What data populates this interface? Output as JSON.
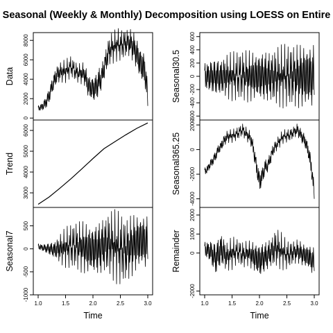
{
  "chart_data": {
    "type": "line",
    "title": "Seasonal (Weekly & Monthly) Decomposition using LOESS on Entire",
    "xlabel": "Time",
    "xlim": [
      1.0,
      3.0
    ],
    "x_ticks": [
      "1.0",
      "1.5",
      "2.0",
      "2.5",
      "3.0"
    ],
    "x_tick_values": [
      1.0,
      1.5,
      2.0,
      2.5,
      3.0
    ],
    "panels": [
      {
        "ylabel": "Data",
        "ylim": [
          -200,
          8800
        ],
        "y_ticks": [
          "0",
          "2000",
          "4000",
          "6000",
          "8000"
        ],
        "y_tick_values": [
          0,
          2000,
          4000,
          6000,
          8000
        ],
        "series": {
          "x": [
            1.0,
            1.05,
            1.1,
            1.15,
            1.2,
            1.25,
            1.3,
            1.35,
            1.4,
            1.45,
            1.5,
            1.55,
            1.6,
            1.65,
            1.7,
            1.75,
            1.8,
            1.85,
            1.9,
            1.95,
            2.0,
            2.05,
            2.1,
            2.15,
            2.2,
            2.25,
            2.3,
            2.35,
            2.4,
            2.45,
            2.5,
            2.55,
            2.6,
            2.65,
            2.7,
            2.75,
            2.8,
            2.85,
            2.9,
            2.95,
            3.0
          ],
          "y": [
            1000,
            1100,
            1300,
            1700,
            2300,
            3200,
            4000,
            4500,
            4700,
            4800,
            4800,
            5100,
            5300,
            5000,
            4700,
            4600,
            4600,
            4500,
            3500,
            3100,
            3000,
            3100,
            3700,
            4100,
            5100,
            6200,
            7000,
            7200,
            7400,
            7600,
            7500,
            7600,
            7700,
            7800,
            7600,
            7200,
            6600,
            5800,
            5300,
            4900,
            2000
          ],
          "amplitude": [
            350,
            450,
            600,
            800,
            900,
            1000,
            1100,
            1150,
            1100,
            1200,
            1200,
            1250,
            1200,
            1150,
            1100,
            1100,
            1200,
            1300,
            1400,
            1500,
            1600,
            1700,
            1700,
            1500,
            1500,
            1600,
            1700,
            1700,
            1700,
            1700,
            1700,
            1700,
            1600,
            1600,
            1700,
            1800,
            1900,
            2000,
            2100,
            2200,
            1500
          ]
        }
      },
      {
        "ylabel": "Trend",
        "ylim": [
          2300,
          6500
        ],
        "y_ticks": [
          "3000",
          "4000",
          "5000",
          "6000"
        ],
        "y_tick_values": [
          3000,
          4000,
          5000,
          6000
        ],
        "series": {
          "x": [
            1.0,
            1.2,
            1.4,
            1.6,
            1.8,
            2.0,
            2.2,
            2.4,
            2.6,
            2.8,
            3.0
          ],
          "y": [
            2450,
            2800,
            3230,
            3680,
            4160,
            4650,
            5120,
            5460,
            5790,
            6100,
            6360
          ]
        }
      },
      {
        "ylabel": "Seasonal7",
        "ylim": [
          -1000,
          900
        ],
        "y_ticks": [
          "-1000",
          "-500",
          "0",
          "500"
        ],
        "y_tick_values": [
          -1000,
          -500,
          0,
          500
        ],
        "series": {
          "x": [
            1.0,
            1.1,
            1.2,
            1.3,
            1.4,
            1.5,
            1.6,
            1.7,
            1.8,
            1.9,
            2.0,
            2.1,
            2.2,
            2.3,
            2.4,
            2.5,
            2.6,
            2.7,
            2.8,
            2.9,
            3.0
          ],
          "y": [
            50,
            20,
            0,
            -20,
            0,
            30,
            60,
            70,
            40,
            0,
            -20,
            0,
            80,
            120,
            60,
            0,
            -40,
            60,
            140,
            180,
            120
          ],
          "amplitude": [
            80,
            100,
            150,
            230,
            350,
            450,
            520,
            560,
            600,
            630,
            620,
            660,
            720,
            760,
            800,
            830,
            780,
            760,
            700,
            680,
            680
          ]
        }
      },
      {
        "ylabel": "Seasonal30.5",
        "ylim": [
          -660,
          660
        ],
        "y_ticks": [
          "-600",
          "-400",
          "-200",
          "0",
          "200",
          "400",
          "600"
        ],
        "y_tick_values": [
          -600,
          -400,
          -200,
          0,
          200,
          400,
          600
        ],
        "series": {
          "x": [
            1.0,
            1.1,
            1.2,
            1.3,
            1.4,
            1.5,
            1.6,
            1.7,
            1.8,
            1.9,
            2.0,
            2.1,
            2.2,
            2.3,
            2.4,
            2.5,
            2.6,
            2.7,
            2.8,
            2.9,
            3.0
          ],
          "y": [
            0,
            0,
            -10,
            -10,
            0,
            0,
            10,
            10,
            0,
            0,
            0,
            0,
            -10,
            0,
            0,
            10,
            10,
            0,
            0,
            0,
            0
          ],
          "amplitude": [
            260,
            300,
            320,
            340,
            360,
            380,
            400,
            410,
            420,
            420,
            430,
            440,
            450,
            470,
            480,
            500,
            520,
            540,
            550,
            560,
            560
          ]
        }
      },
      {
        "ylabel": "Seasonal365.25",
        "ylim": [
          -4700,
          2400
        ],
        "y_ticks": [
          "-4000",
          "-2000",
          "0",
          "2000"
        ],
        "y_tick_values": [
          -4000,
          -2000,
          0,
          2000
        ],
        "series": {
          "x": [
            1.0,
            1.05,
            1.1,
            1.15,
            1.2,
            1.25,
            1.3,
            1.35,
            1.4,
            1.45,
            1.5,
            1.55,
            1.6,
            1.65,
            1.7,
            1.75,
            1.8,
            1.85,
            1.9,
            1.95,
            2.0,
            2.05,
            2.1,
            2.15,
            2.2,
            2.25,
            2.3,
            2.35,
            2.4,
            2.45,
            2.5,
            2.55,
            2.6,
            2.65,
            2.7,
            2.75,
            2.8,
            2.85,
            2.9,
            2.95,
            3.0
          ],
          "y": [
            -1800,
            -1600,
            -1200,
            -900,
            -500,
            0,
            300,
            700,
            1000,
            1100,
            1100,
            1200,
            1300,
            1500,
            1600,
            1300,
            1100,
            800,
            -200,
            -1500,
            -2600,
            -2200,
            -1400,
            -1300,
            -700,
            0,
            300,
            600,
            900,
            1100,
            1100,
            1200,
            1300,
            1500,
            1600,
            1200,
            900,
            500,
            -300,
            -1500,
            -3600
          ],
          "amplitude": [
            400,
            400,
            450,
            450,
            500,
            500,
            500,
            550,
            550,
            550,
            550,
            550,
            550,
            550,
            600,
            600,
            600,
            650,
            750,
            900,
            1100,
            900,
            700,
            650,
            650,
            600,
            550,
            550,
            550,
            550,
            550,
            550,
            550,
            550,
            600,
            600,
            650,
            700,
            800,
            1000,
            800
          ]
        }
      },
      {
        "ylabel": "Remainder",
        "ylim": [
          -2200,
          2400
        ],
        "y_ticks": [
          "-2000",
          "0",
          "1000",
          "2000"
        ],
        "y_tick_values": [
          -2000,
          0,
          1000,
          2000
        ],
        "series": {
          "x": [
            1.0,
            1.1,
            1.2,
            1.3,
            1.4,
            1.5,
            1.6,
            1.7,
            1.8,
            1.9,
            2.0,
            2.1,
            2.2,
            2.3,
            2.4,
            2.5,
            2.6,
            2.7,
            2.8,
            2.9,
            3.0
          ],
          "y": [
            200,
            100,
            -300,
            200,
            -200,
            0,
            100,
            -100,
            0,
            -200,
            -400,
            -200,
            0,
            300,
            100,
            -100,
            0,
            100,
            -100,
            -200,
            -500
          ],
          "amplitude": [
            500,
            700,
            1000,
            1100,
            800,
            900,
            700,
            750,
            700,
            900,
            1100,
            900,
            900,
            1100,
            1000,
            800,
            700,
            700,
            700,
            800,
            900
          ]
        }
      }
    ]
  }
}
